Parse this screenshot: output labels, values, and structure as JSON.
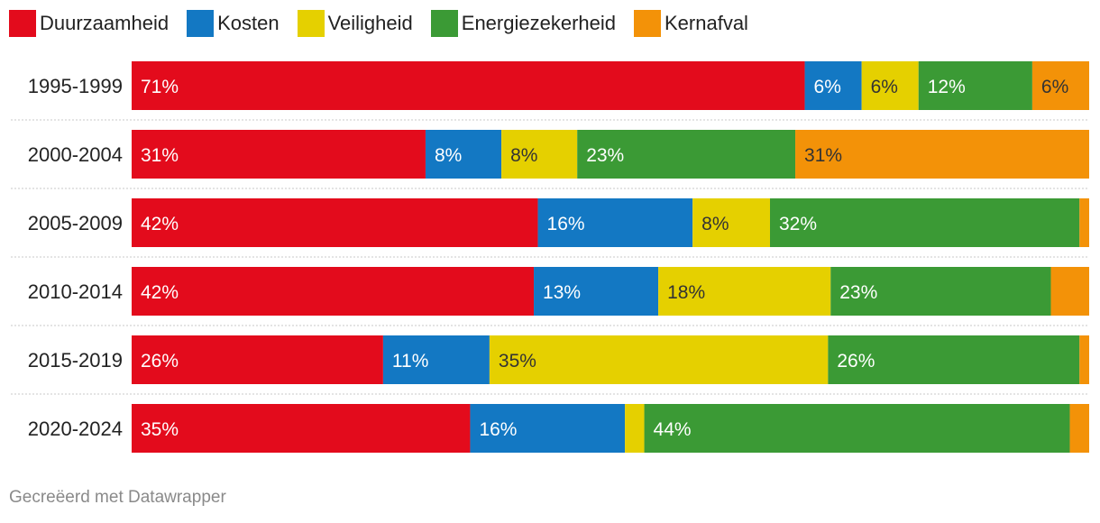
{
  "chart_data": {
    "type": "bar",
    "orientation": "horizontal",
    "stacked": true,
    "categories": [
      "1995-1999",
      "2000-2004",
      "2005-2009",
      "2010-2014",
      "2015-2019",
      "2020-2024"
    ],
    "series": [
      {
        "name": "Duurzaamheid",
        "color": "#e30b1c",
        "text_color": "#ffffff",
        "values": [
          71,
          31,
          42,
          42,
          26,
          35
        ],
        "labels": [
          "71%",
          "31%",
          "42%",
          "42%",
          "26%",
          "35%"
        ]
      },
      {
        "name": "Kosten",
        "color": "#1378c3",
        "text_color": "#ffffff",
        "values": [
          6,
          8,
          16,
          13,
          11,
          16
        ],
        "labels": [
          "6%",
          "8%",
          "16%",
          "13%",
          "11%",
          "16%"
        ]
      },
      {
        "name": "Veiligheid",
        "color": "#e5d000",
        "text_color": "#333333",
        "values": [
          6,
          8,
          8,
          18,
          35,
          2
        ],
        "labels": [
          "6%",
          "8%",
          "8%",
          "18%",
          "35%",
          ""
        ]
      },
      {
        "name": "Energiezekerheid",
        "color": "#3b9a35",
        "text_color": "#ffffff",
        "values": [
          12,
          23,
          32,
          23,
          26,
          44
        ],
        "labels": [
          "12%",
          "23%",
          "32%",
          "23%",
          "26%",
          "44%"
        ]
      },
      {
        "name": "Kernafval",
        "color": "#f39208",
        "text_color": "#333333",
        "values": [
          6,
          31,
          1,
          4,
          1,
          2
        ],
        "labels": [
          "6%",
          "31%",
          "",
          "",
          "",
          ""
        ]
      }
    ],
    "legend_position": "top-left",
    "xlim": [
      0,
      100
    ]
  },
  "footer": {
    "credit": "Gecreëerd met Datawrapper"
  }
}
